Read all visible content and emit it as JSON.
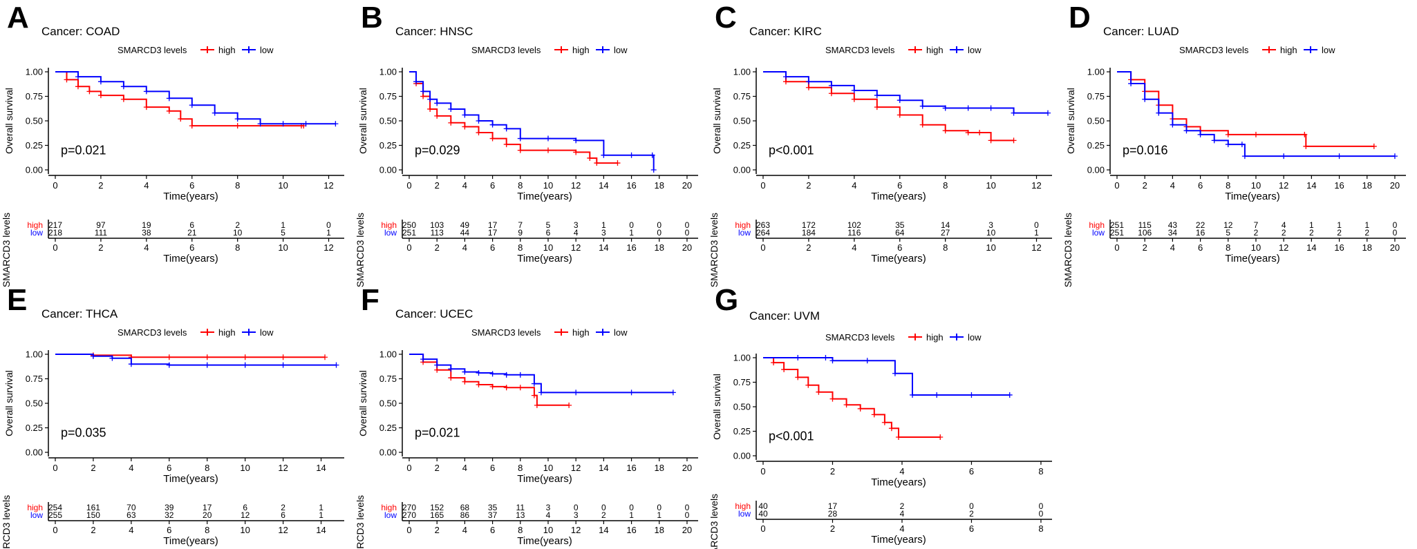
{
  "figure": {
    "legend_title": "SMARCD3 levels",
    "legend_high": "high",
    "legend_low": "low",
    "ylabel": "Overall survival",
    "xlabel": "Time(years)",
    "risk_ylabel": "SMARCD3 levels",
    "risk_high_label": "high",
    "risk_low_label": "low",
    "colors": {
      "high": "#ff0000",
      "low": "#0000ff"
    }
  },
  "chart_data": [
    {
      "panel": "A",
      "type": "line",
      "title": "Cancer: COAD",
      "pvalue": "p=0.021",
      "xlabel": "Time(years)",
      "ylabel": "Overall survival",
      "xlim": [
        0,
        12.5
      ],
      "xticks": [
        0,
        2,
        4,
        6,
        8,
        10,
        12
      ],
      "ylim": [
        0,
        1
      ],
      "yticks": [
        "0.00",
        "0.25",
        "0.50",
        "0.75",
        "1.00"
      ],
      "series": [
        {
          "name": "high",
          "x": [
            0,
            0.5,
            1,
            1.5,
            2,
            3,
            4,
            5,
            5.5,
            6,
            8,
            10.8,
            10.9
          ],
          "y": [
            1,
            0.92,
            0.85,
            0.8,
            0.76,
            0.72,
            0.64,
            0.6,
            0.52,
            0.45,
            0.45,
            0.45,
            0.45
          ]
        },
        {
          "name": "low",
          "x": [
            0,
            1,
            2,
            3,
            4,
            5,
            6,
            7,
            8,
            9,
            10,
            11,
            12.3
          ],
          "y": [
            1,
            0.95,
            0.9,
            0.85,
            0.8,
            0.73,
            0.66,
            0.58,
            0.52,
            0.47,
            0.47,
            0.47,
            0.47
          ]
        }
      ],
      "risk_times": [
        0,
        2,
        4,
        6,
        8,
        10,
        12
      ],
      "risk_high": [
        217,
        97,
        19,
        6,
        2,
        1,
        0
      ],
      "risk_low": [
        218,
        111,
        38,
        21,
        10,
        5,
        1
      ]
    },
    {
      "panel": "B",
      "type": "line",
      "title": "Cancer: HNSC",
      "pvalue": "p=0.029",
      "xlabel": "Time(years)",
      "ylabel": "Overall survival",
      "xlim": [
        0,
        20.5
      ],
      "xticks": [
        0,
        2,
        4,
        6,
        8,
        10,
        12,
        14,
        16,
        18,
        20
      ],
      "ylim": [
        0,
        1
      ],
      "yticks": [
        "0.00",
        "0.25",
        "0.50",
        "0.75",
        "1.00"
      ],
      "series": [
        {
          "name": "high",
          "x": [
            0,
            0.5,
            1,
            1.5,
            2,
            3,
            4,
            5,
            6,
            7,
            8,
            10,
            12,
            13,
            13.5,
            15
          ],
          "y": [
            1,
            0.88,
            0.75,
            0.62,
            0.55,
            0.48,
            0.44,
            0.38,
            0.32,
            0.26,
            0.2,
            0.2,
            0.18,
            0.12,
            0.07,
            0.07
          ]
        },
        {
          "name": "low",
          "x": [
            0,
            0.5,
            1,
            1.5,
            2,
            3,
            4,
            5,
            6,
            7,
            8,
            10,
            12,
            14,
            16,
            17.5,
            17.6
          ],
          "y": [
            1,
            0.9,
            0.8,
            0.72,
            0.68,
            0.62,
            0.56,
            0.5,
            0.46,
            0.42,
            0.32,
            0.32,
            0.3,
            0.15,
            0.15,
            0.15,
            0
          ]
        }
      ],
      "risk_times": [
        0,
        2,
        4,
        6,
        8,
        10,
        12,
        14,
        16,
        18,
        20
      ],
      "risk_high": [
        250,
        103,
        49,
        17,
        7,
        5,
        3,
        1,
        0,
        0,
        0
      ],
      "risk_low": [
        251,
        113,
        44,
        17,
        9,
        6,
        4,
        3,
        1,
        0,
        0
      ]
    },
    {
      "panel": "C",
      "type": "line",
      "title": "Cancer: KIRC",
      "pvalue": "p<0.001",
      "xlabel": "Time(years)",
      "ylabel": "Overall survival",
      "xlim": [
        0,
        12.5
      ],
      "xticks": [
        0,
        2,
        4,
        6,
        8,
        10,
        12
      ],
      "ylim": [
        0,
        1
      ],
      "yticks": [
        "0.00",
        "0.25",
        "0.50",
        "0.75",
        "1.00"
      ],
      "series": [
        {
          "name": "high",
          "x": [
            0,
            1,
            2,
            3,
            4,
            5,
            6,
            7,
            8,
            9,
            9.5,
            10,
            11
          ],
          "y": [
            1,
            0.9,
            0.84,
            0.78,
            0.72,
            0.64,
            0.56,
            0.46,
            0.4,
            0.38,
            0.38,
            0.3,
            0.3
          ]
        },
        {
          "name": "low",
          "x": [
            0,
            1,
            2,
            3,
            4,
            5,
            6,
            7,
            8,
            9,
            10,
            11,
            12.5
          ],
          "y": [
            1,
            0.95,
            0.9,
            0.86,
            0.81,
            0.76,
            0.71,
            0.65,
            0.63,
            0.63,
            0.63,
            0.58,
            0.58
          ]
        }
      ],
      "risk_times": [
        0,
        2,
        4,
        6,
        8,
        10,
        12
      ],
      "risk_high": [
        263,
        172,
        102,
        35,
        14,
        3,
        0
      ],
      "risk_low": [
        264,
        184,
        116,
        64,
        27,
        10,
        1
      ]
    },
    {
      "panel": "D",
      "type": "line",
      "title": "Cancer: LUAD",
      "pvalue": "p=0.016",
      "xlabel": "Time(years)",
      "ylabel": "Overall survival",
      "xlim": [
        0,
        20.5
      ],
      "xticks": [
        0,
        2,
        4,
        6,
        8,
        10,
        12,
        14,
        16,
        18,
        20
      ],
      "ylim": [
        0,
        1
      ],
      "yticks": [
        "0.00",
        "0.25",
        "0.50",
        "0.75",
        "1.00"
      ],
      "series": [
        {
          "name": "high",
          "x": [
            0,
            1,
            2,
            3,
            4,
            5,
            6,
            8,
            10,
            13.5,
            13.6,
            18.5
          ],
          "y": [
            1,
            0.92,
            0.8,
            0.66,
            0.52,
            0.44,
            0.4,
            0.36,
            0.36,
            0.36,
            0.24,
            0.24
          ]
        },
        {
          "name": "low",
          "x": [
            0,
            1,
            2,
            3,
            4,
            5,
            6,
            7,
            8,
            9,
            9.2,
            12,
            16,
            20
          ],
          "y": [
            1,
            0.88,
            0.72,
            0.58,
            0.46,
            0.4,
            0.36,
            0.3,
            0.26,
            0.26,
            0.14,
            0.14,
            0.14,
            0.14
          ]
        }
      ],
      "risk_times": [
        0,
        2,
        4,
        6,
        8,
        10,
        12,
        14,
        16,
        18,
        20
      ],
      "risk_high": [
        251,
        115,
        43,
        22,
        12,
        7,
        4,
        1,
        1,
        1,
        0
      ],
      "risk_low": [
        251,
        106,
        34,
        16,
        5,
        2,
        2,
        2,
        2,
        2,
        0
      ]
    },
    {
      "panel": "E",
      "type": "line",
      "title": "Cancer: THCA",
      "pvalue": "p=0.035",
      "xlabel": "Time(years)",
      "ylabel": "Overall survival",
      "xlim": [
        0,
        15
      ],
      "xticks": [
        0,
        2,
        4,
        6,
        8,
        10,
        12,
        14
      ],
      "ylim": [
        0,
        1
      ],
      "yticks": [
        "0.00",
        "0.25",
        "0.50",
        "0.75",
        "1.00"
      ],
      "series": [
        {
          "name": "high",
          "x": [
            0,
            2,
            4,
            6,
            8,
            10,
            12,
            14.2
          ],
          "y": [
            1,
            0.99,
            0.97,
            0.97,
            0.97,
            0.97,
            0.97,
            0.97
          ]
        },
        {
          "name": "low",
          "x": [
            0,
            2,
            3,
            4,
            6,
            8,
            10,
            12,
            14.8
          ],
          "y": [
            1,
            0.98,
            0.96,
            0.9,
            0.89,
            0.89,
            0.89,
            0.89,
            0.89
          ]
        }
      ],
      "risk_times": [
        0,
        2,
        4,
        6,
        8,
        10,
        12,
        14
      ],
      "risk_high": [
        254,
        161,
        70,
        39,
        17,
        6,
        2,
        1
      ],
      "risk_low": [
        255,
        150,
        63,
        32,
        20,
        12,
        6,
        1
      ]
    },
    {
      "panel": "F",
      "type": "line",
      "title": "Cancer: UCEC",
      "pvalue": "p=0.021",
      "xlabel": "Time(years)",
      "ylabel": "Overall survival",
      "xlim": [
        0,
        20.5
      ],
      "xticks": [
        0,
        2,
        4,
        6,
        8,
        10,
        12,
        14,
        16,
        18,
        20
      ],
      "ylim": [
        0,
        1
      ],
      "yticks": [
        "0.00",
        "0.25",
        "0.50",
        "0.75",
        "1.00"
      ],
      "series": [
        {
          "name": "high",
          "x": [
            0,
            1,
            2,
            3,
            4,
            5,
            6,
            7,
            8,
            9,
            9.2,
            11.5
          ],
          "y": [
            1,
            0.92,
            0.84,
            0.76,
            0.72,
            0.69,
            0.67,
            0.66,
            0.66,
            0.58,
            0.48,
            0.48
          ]
        },
        {
          "name": "low",
          "x": [
            0,
            1,
            2,
            3,
            4,
            5,
            6,
            7,
            8,
            9,
            9.5,
            12,
            16,
            19
          ],
          "y": [
            1,
            0.95,
            0.89,
            0.85,
            0.82,
            0.81,
            0.8,
            0.79,
            0.79,
            0.7,
            0.61,
            0.61,
            0.61,
            0.61
          ]
        }
      ],
      "risk_times": [
        0,
        2,
        4,
        6,
        8,
        10,
        12,
        14,
        16,
        18,
        20
      ],
      "risk_high": [
        270,
        152,
        68,
        35,
        11,
        3,
        0,
        0,
        0,
        0,
        0
      ],
      "risk_low": [
        270,
        165,
        86,
        37,
        13,
        4,
        3,
        2,
        1,
        1,
        0
      ]
    },
    {
      "panel": "G",
      "type": "line",
      "title": "Cancer: UVM",
      "pvalue": "p<0.001",
      "xlabel": "Time(years)",
      "ylabel": "Overall survival",
      "xlim": [
        0,
        8.2
      ],
      "xticks": [
        0,
        2,
        4,
        6,
        8
      ],
      "ylim": [
        0,
        1
      ],
      "yticks": [
        "0.00",
        "0.25",
        "0.50",
        "0.75",
        "1.00"
      ],
      "series": [
        {
          "name": "high",
          "x": [
            0,
            0.3,
            0.6,
            1,
            1.3,
            1.6,
            2,
            2.4,
            2.8,
            3.2,
            3.5,
            3.7,
            3.9,
            5.1
          ],
          "y": [
            1,
            0.95,
            0.88,
            0.8,
            0.72,
            0.65,
            0.58,
            0.52,
            0.48,
            0.42,
            0.34,
            0.28,
            0.19,
            0.19
          ]
        },
        {
          "name": "low",
          "x": [
            0,
            1,
            1.8,
            2,
            3,
            3.8,
            4.3,
            5,
            6,
            7.1
          ],
          "y": [
            1,
            1,
            1,
            0.97,
            0.97,
            0.84,
            0.62,
            0.62,
            0.62,
            0.62
          ]
        }
      ],
      "risk_times": [
        0,
        2,
        4,
        6,
        8
      ],
      "risk_high": [
        40,
        17,
        2,
        0,
        0
      ],
      "risk_low": [
        40,
        28,
        4,
        2,
        0
      ]
    }
  ]
}
